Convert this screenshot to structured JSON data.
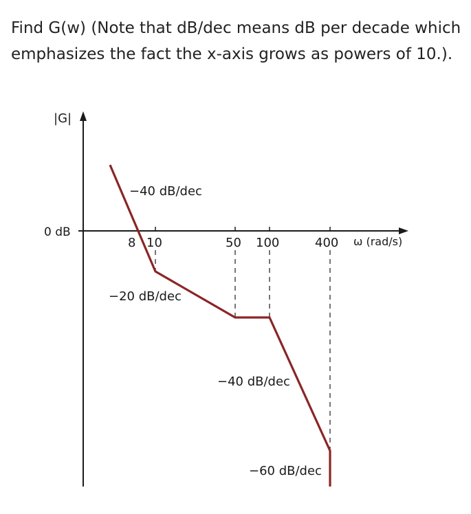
{
  "question": {
    "text": "Find G(w) (Note that dB/dec means dB per decade which emphasizes the fact the x-axis grows as powers of 10.)."
  },
  "diagram": {
    "y_axis_label": "|G|",
    "zero_label": "0 dB",
    "x_axis_label": "ω (rad/s)",
    "x_ticks": [
      "8",
      "10",
      "50",
      "100",
      "400"
    ],
    "slope_labels": [
      "−40 dB/dec",
      "−20 dB/dec",
      "−40 dB/dec",
      "−60 dB/dec"
    ],
    "curve_color": "#8b2525",
    "axis_color": "#1a1a1a"
  }
}
